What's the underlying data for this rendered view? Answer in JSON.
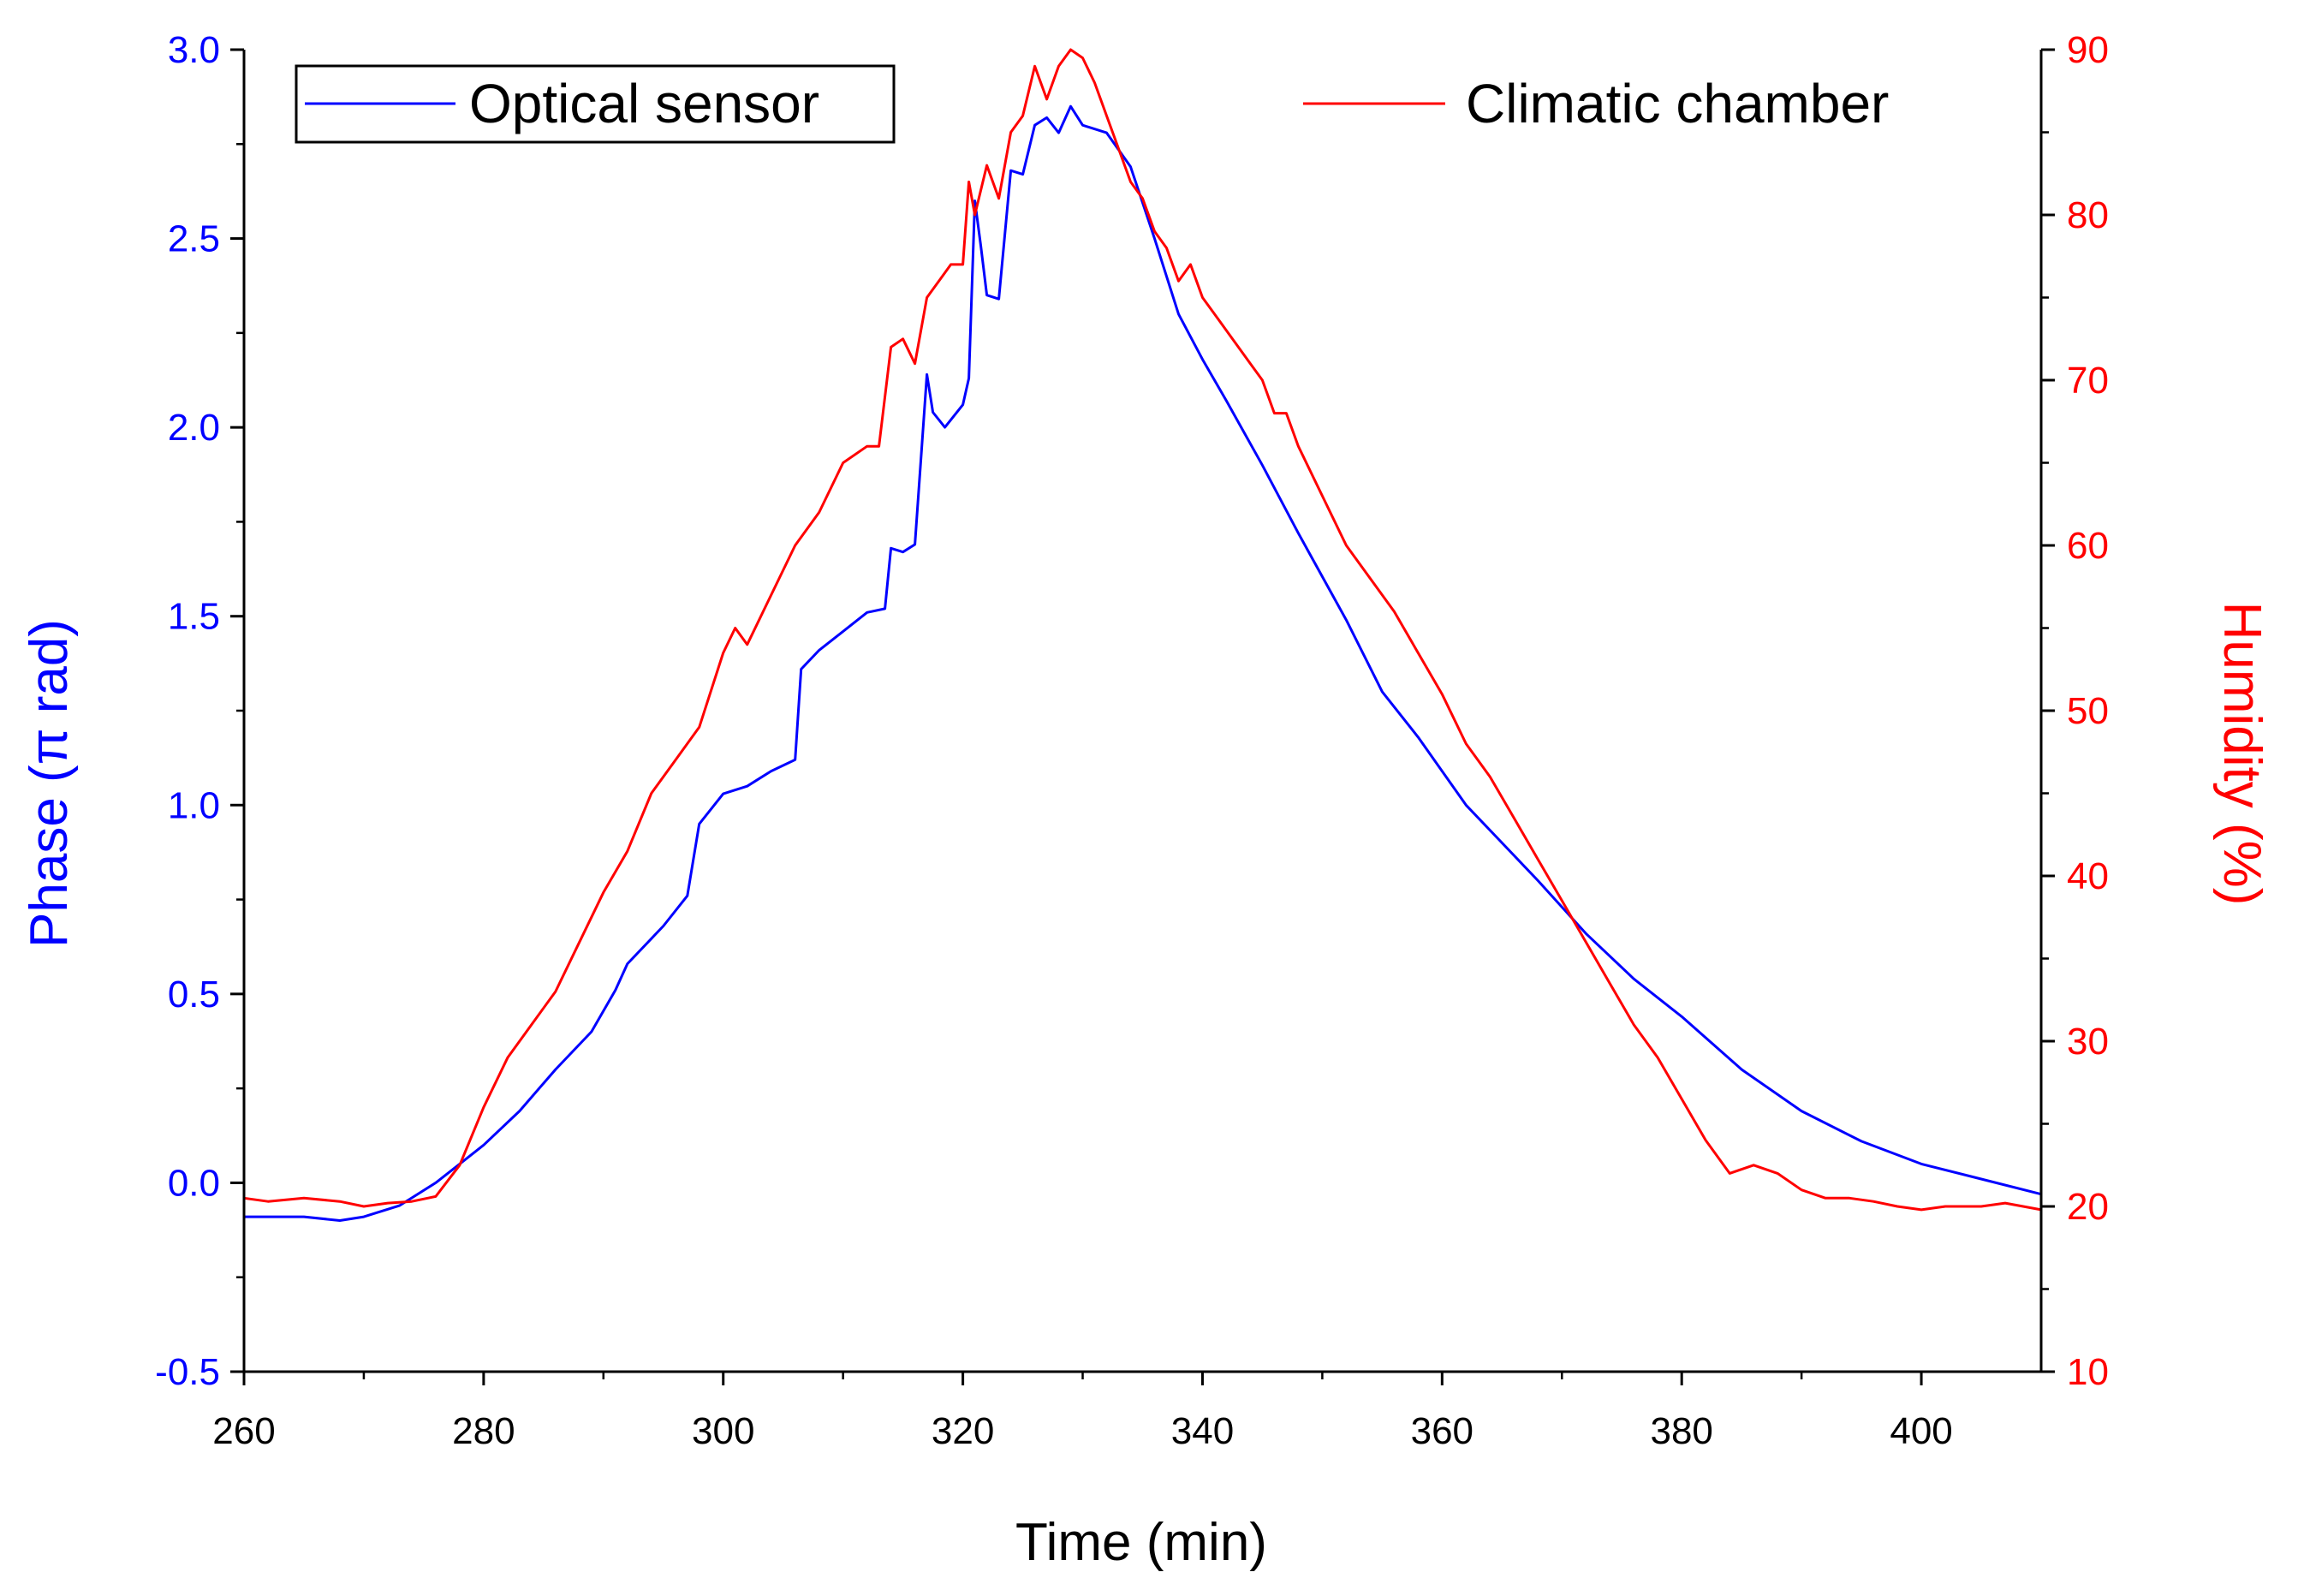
{
  "chart_data": {
    "type": "line",
    "title": "",
    "xlabel": "Time (min)",
    "ylabel_left": "Phase (π rad)",
    "ylabel_right": "Humidity (%)",
    "xlim": [
      260,
      410
    ],
    "ylim_left": [
      -0.5,
      3.0
    ],
    "ylim_right": [
      10,
      90
    ],
    "x_ticks": [
      "260",
      "280",
      "300",
      "320",
      "340",
      "360",
      "380",
      "400"
    ],
    "y_left_ticks": [
      "-0.5",
      "0.0",
      "0.5",
      "1.0",
      "1.5",
      "2.0",
      "2.5",
      "3.0"
    ],
    "y_right_ticks": [
      "10",
      "20",
      "30",
      "40",
      "50",
      "60",
      "70",
      "80",
      "90"
    ],
    "grid": false,
    "legend": [
      "Optical sensor",
      "Climatic chamber"
    ],
    "colors": {
      "optical": "#0000ff",
      "chamber": "#ff0000",
      "axis": "#000000"
    },
    "series": [
      {
        "name": "Optical sensor",
        "axis": "left",
        "color": "#0000ff",
        "points": [
          [
            260,
            -0.09
          ],
          [
            265,
            -0.09
          ],
          [
            268,
            -0.1
          ],
          [
            270,
            -0.09
          ],
          [
            273,
            -0.06
          ],
          [
            276,
            0.0
          ],
          [
            278,
            0.05
          ],
          [
            280,
            0.1
          ],
          [
            283,
            0.19
          ],
          [
            286,
            0.3
          ],
          [
            289,
            0.4
          ],
          [
            291,
            0.51
          ],
          [
            292,
            0.58
          ],
          [
            295,
            0.68
          ],
          [
            297,
            0.76
          ],
          [
            298,
            0.95
          ],
          [
            300,
            1.03
          ],
          [
            302,
            1.05
          ],
          [
            304,
            1.09
          ],
          [
            306,
            1.12
          ],
          [
            306.5,
            1.36
          ],
          [
            308,
            1.41
          ],
          [
            310,
            1.46
          ],
          [
            312,
            1.51
          ],
          [
            313.5,
            1.52
          ],
          [
            314,
            1.68
          ],
          [
            315,
            1.67
          ],
          [
            316,
            1.69
          ],
          [
            317,
            2.14
          ],
          [
            317.5,
            2.04
          ],
          [
            318.5,
            2.0
          ],
          [
            320,
            2.06
          ],
          [
            320.5,
            2.13
          ],
          [
            321,
            2.6
          ],
          [
            321.5,
            2.48
          ],
          [
            322,
            2.35
          ],
          [
            323,
            2.34
          ],
          [
            324,
            2.68
          ],
          [
            325,
            2.67
          ],
          [
            326,
            2.8
          ],
          [
            327,
            2.82
          ],
          [
            328,
            2.78
          ],
          [
            329,
            2.85
          ],
          [
            330,
            2.8
          ],
          [
            332,
            2.78
          ],
          [
            334,
            2.69
          ],
          [
            336,
            2.5
          ],
          [
            338,
            2.3
          ],
          [
            340,
            2.18
          ],
          [
            342,
            2.07
          ],
          [
            345,
            1.9
          ],
          [
            348,
            1.72
          ],
          [
            352,
            1.49
          ],
          [
            355,
            1.3
          ],
          [
            358,
            1.18
          ],
          [
            362,
            1.0
          ],
          [
            365,
            0.9
          ],
          [
            368,
            0.8
          ],
          [
            372,
            0.66
          ],
          [
            376,
            0.54
          ],
          [
            380,
            0.44
          ],
          [
            385,
            0.3
          ],
          [
            390,
            0.19
          ],
          [
            395,
            0.11
          ],
          [
            400,
            0.05
          ],
          [
            405,
            0.01
          ],
          [
            410,
            -0.03
          ]
        ]
      },
      {
        "name": "Climatic chamber",
        "axis": "right",
        "color": "#ff0000",
        "points": [
          [
            260,
            20.5
          ],
          [
            262,
            20.3
          ],
          [
            265,
            20.5
          ],
          [
            268,
            20.3
          ],
          [
            270,
            20.0
          ],
          [
            272,
            20.2
          ],
          [
            274,
            20.3
          ],
          [
            276,
            20.6
          ],
          [
            278,
            22.5
          ],
          [
            280,
            26.0
          ],
          [
            282,
            29.0
          ],
          [
            284,
            31.0
          ],
          [
            286,
            33.0
          ],
          [
            288,
            36.0
          ],
          [
            290,
            39.0
          ],
          [
            292,
            41.5
          ],
          [
            294,
            45.0
          ],
          [
            296,
            47.0
          ],
          [
            298,
            49.0
          ],
          [
            300,
            53.5
          ],
          [
            301,
            55.0
          ],
          [
            302,
            54.0
          ],
          [
            304,
            57.0
          ],
          [
            306,
            60.0
          ],
          [
            308,
            62.0
          ],
          [
            310,
            65.0
          ],
          [
            312,
            66.0
          ],
          [
            313,
            66.0
          ],
          [
            314,
            72.0
          ],
          [
            315,
            72.5
          ],
          [
            316,
            71.0
          ],
          [
            317,
            75.0
          ],
          [
            318,
            76.0
          ],
          [
            319,
            77.0
          ],
          [
            320,
            77.0
          ],
          [
            320.5,
            82.0
          ],
          [
            321,
            80.0
          ],
          [
            322,
            83.0
          ],
          [
            323,
            81.0
          ],
          [
            324,
            85.0
          ],
          [
            325,
            86.0
          ],
          [
            326,
            89.0
          ],
          [
            327,
            87.0
          ],
          [
            328,
            89.0
          ],
          [
            329,
            90.0
          ],
          [
            330,
            89.5
          ],
          [
            331,
            88.0
          ],
          [
            332,
            86.0
          ],
          [
            333,
            84.0
          ],
          [
            334,
            82.0
          ],
          [
            335,
            81.0
          ],
          [
            336,
            79.0
          ],
          [
            337,
            78.0
          ],
          [
            338,
            76.0
          ],
          [
            339,
            77.0
          ],
          [
            340,
            75.0
          ],
          [
            341,
            74.0
          ],
          [
            342,
            73.0
          ],
          [
            343,
            72.0
          ],
          [
            344,
            71.0
          ],
          [
            345,
            70.0
          ],
          [
            346,
            68.0
          ],
          [
            347,
            68.0
          ],
          [
            348,
            66.0
          ],
          [
            350,
            63.0
          ],
          [
            352,
            60.0
          ],
          [
            354,
            58.0
          ],
          [
            356,
            56.0
          ],
          [
            358,
            53.5
          ],
          [
            360,
            51.0
          ],
          [
            362,
            48.0
          ],
          [
            364,
            46.0
          ],
          [
            366,
            43.5
          ],
          [
            368,
            41.0
          ],
          [
            370,
            38.5
          ],
          [
            372,
            36.0
          ],
          [
            374,
            33.5
          ],
          [
            376,
            31.0
          ],
          [
            378,
            29.0
          ],
          [
            380,
            26.5
          ],
          [
            382,
            24.0
          ],
          [
            384,
            22.0
          ],
          [
            386,
            22.5
          ],
          [
            388,
            22.0
          ],
          [
            390,
            21.0
          ],
          [
            392,
            20.5
          ],
          [
            394,
            20.5
          ],
          [
            396,
            20.3
          ],
          [
            398,
            20.0
          ],
          [
            400,
            19.8
          ],
          [
            402,
            20.0
          ],
          [
            405,
            20.0
          ],
          [
            407,
            20.2
          ],
          [
            410,
            19.8
          ]
        ]
      }
    ]
  }
}
